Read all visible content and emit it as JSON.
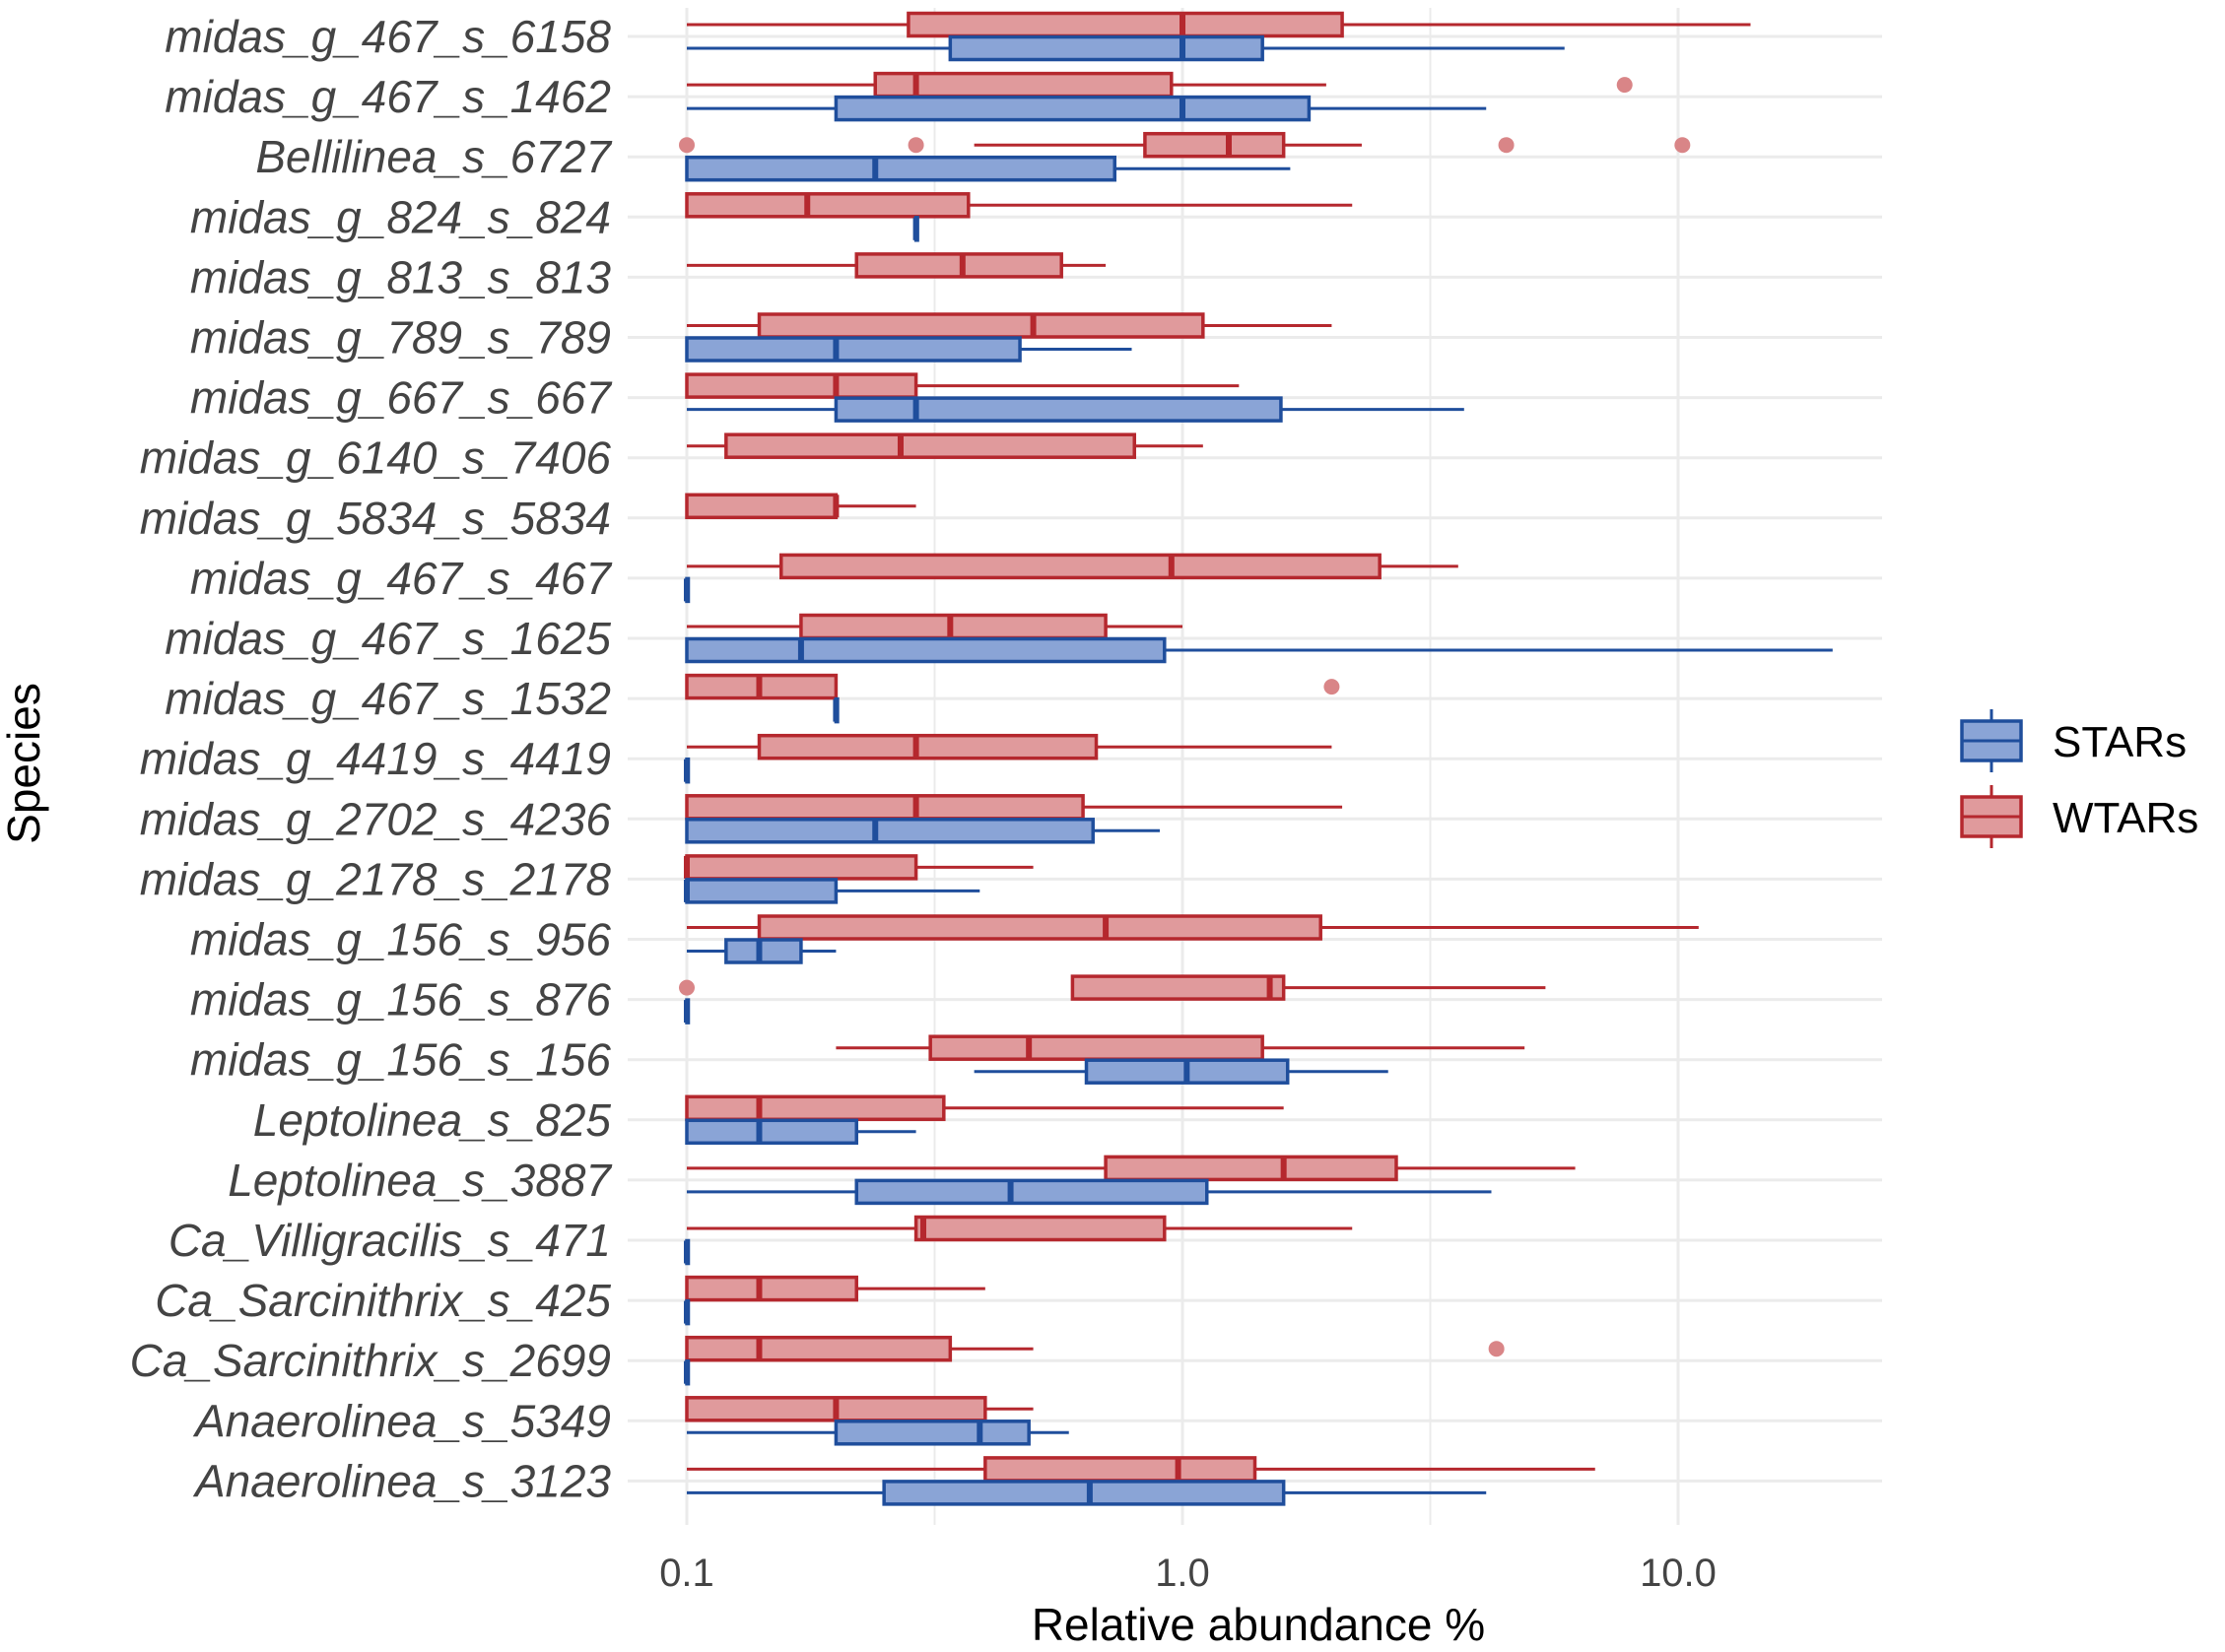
{
  "colors": {
    "STARs": {
      "stroke": "#1f4e9c",
      "fill": "#8aa4d6"
    },
    "WTARs": {
      "stroke": "#b5282e",
      "fill": "#e09a9c"
    },
    "outlier": "#d98587",
    "grid": "#ebebeb"
  },
  "chart_data": {
    "type": "boxplot-horizontal",
    "xlabel": "Relative abundance %",
    "ylabel": "Species",
    "xscale": "log10",
    "xlim": [
      0.1,
      20
    ],
    "xticks": [
      {
        "value": 0.1,
        "label": "0.1"
      },
      {
        "value": 1.0,
        "label": "1.0"
      },
      {
        "value": 10.0,
        "label": "10.0"
      }
    ],
    "legend": {
      "position": "right",
      "entries": [
        "STARs",
        "WTARs"
      ]
    },
    "categories": [
      "midas_g_467_s_6158",
      "midas_g_467_s_1462",
      "Bellilinea_s_6727",
      "midas_g_824_s_824",
      "midas_g_813_s_813",
      "midas_g_789_s_789",
      "midas_g_667_s_667",
      "midas_g_6140_s_7406",
      "midas_g_5834_s_5834",
      "midas_g_467_s_467",
      "midas_g_467_s_1625",
      "midas_g_467_s_1532",
      "midas_g_4419_s_4419",
      "midas_g_2702_s_4236",
      "midas_g_2178_s_2178",
      "midas_g_156_s_956",
      "midas_g_156_s_876",
      "midas_g_156_s_156",
      "Leptolinea_s_825",
      "Leptolinea_s_3887",
      "Ca_Villigracilis_s_471",
      "Ca_Sarcinithrix_s_425",
      "Ca_Sarcinithrix_s_2699",
      "Anaerolinea_s_5349",
      "Anaerolinea_s_3123"
    ],
    "series": [
      {
        "name": "WTARs",
        "boxes": [
          {
            "category": "midas_g_467_s_6158",
            "min": 0.1,
            "q1": 0.28,
            "median": 1.0,
            "q3": 2.1,
            "max": 14.0,
            "outliers": []
          },
          {
            "category": "midas_g_467_s_1462",
            "min": 0.1,
            "q1": 0.24,
            "median": 0.29,
            "q3": 0.95,
            "max": 1.95,
            "outliers": [
              7.8
            ]
          },
          {
            "category": "Bellilinea_s_6727",
            "min": 0.38,
            "q1": 0.84,
            "median": 1.24,
            "q3": 1.6,
            "max": 2.3,
            "outliers": [
              0.1,
              0.29,
              4.5,
              10.2
            ]
          },
          {
            "category": "midas_g_824_s_824",
            "min": 0.1,
            "q1": 0.1,
            "median": 0.175,
            "q3": 0.37,
            "max": 2.2,
            "outliers": []
          },
          {
            "category": "midas_g_813_s_813",
            "min": 0.1,
            "q1": 0.22,
            "median": 0.36,
            "q3": 0.57,
            "max": 0.7,
            "outliers": []
          },
          {
            "category": "midas_g_789_s_789",
            "min": 0.1,
            "q1": 0.14,
            "median": 0.5,
            "q3": 1.1,
            "max": 2.0,
            "outliers": []
          },
          {
            "category": "midas_g_667_s_667",
            "min": 0.1,
            "q1": 0.1,
            "median": 0.2,
            "q3": 0.29,
            "max": 1.3,
            "outliers": []
          },
          {
            "category": "midas_g_6140_s_7406",
            "min": 0.1,
            "q1": 0.12,
            "median": 0.27,
            "q3": 0.8,
            "max": 1.1,
            "outliers": []
          },
          {
            "category": "midas_g_5834_s_5834",
            "min": 0.1,
            "q1": 0.1,
            "median": 0.2,
            "q3": 0.2,
            "max": 0.29,
            "outliers": []
          },
          {
            "category": "midas_g_467_s_467",
            "min": 0.1,
            "q1": 0.155,
            "median": 0.95,
            "q3": 2.5,
            "max": 3.6,
            "outliers": []
          },
          {
            "category": "midas_g_467_s_1625",
            "min": 0.1,
            "q1": 0.17,
            "median": 0.34,
            "q3": 0.7,
            "max": 1.0,
            "outliers": []
          },
          {
            "category": "midas_g_467_s_1532",
            "min": 0.1,
            "q1": 0.1,
            "median": 0.14,
            "q3": 0.2,
            "max": 0.2,
            "outliers": [
              2.0
            ]
          },
          {
            "category": "midas_g_4419_s_4419",
            "min": 0.1,
            "q1": 0.14,
            "median": 0.29,
            "q3": 0.67,
            "max": 2.0,
            "outliers": []
          },
          {
            "category": "midas_g_2702_s_4236",
            "min": 0.1,
            "q1": 0.1,
            "median": 0.29,
            "q3": 0.63,
            "max": 2.1,
            "outliers": []
          },
          {
            "category": "midas_g_2178_s_2178",
            "min": 0.1,
            "q1": 0.1,
            "median": 0.1,
            "q3": 0.29,
            "max": 0.5,
            "outliers": []
          },
          {
            "category": "midas_g_156_s_956",
            "min": 0.1,
            "q1": 0.14,
            "median": 0.7,
            "q3": 1.9,
            "max": 11.0,
            "outliers": []
          },
          {
            "category": "midas_g_156_s_876",
            "min": 0.6,
            "q1": 0.6,
            "median": 1.5,
            "q3": 1.6,
            "max": 5.4,
            "outliers": [
              0.1
            ]
          },
          {
            "category": "midas_g_156_s_156",
            "min": 0.2,
            "q1": 0.31,
            "median": 0.49,
            "q3": 1.45,
            "max": 4.9,
            "outliers": []
          },
          {
            "category": "Leptolinea_s_825",
            "min": 0.1,
            "q1": 0.1,
            "median": 0.14,
            "q3": 0.33,
            "max": 1.6,
            "outliers": []
          },
          {
            "category": "Leptolinea_s_3887",
            "min": 0.1,
            "q1": 0.7,
            "median": 1.6,
            "q3": 2.7,
            "max": 6.2,
            "outliers": []
          },
          {
            "category": "Ca_Villigracilis_s_471",
            "min": 0.1,
            "q1": 0.29,
            "median": 0.3,
            "q3": 0.92,
            "max": 2.2,
            "outliers": []
          },
          {
            "category": "Ca_Sarcinithrix_s_425",
            "min": 0.1,
            "q1": 0.1,
            "median": 0.14,
            "q3": 0.22,
            "max": 0.4,
            "outliers": []
          },
          {
            "category": "Ca_Sarcinithrix_s_2699",
            "min": 0.1,
            "q1": 0.1,
            "median": 0.14,
            "q3": 0.34,
            "max": 0.5,
            "outliers": [
              4.3
            ]
          },
          {
            "category": "Anaerolinea_s_5349",
            "min": 0.1,
            "q1": 0.1,
            "median": 0.2,
            "q3": 0.4,
            "max": 0.5,
            "outliers": []
          },
          {
            "category": "Anaerolinea_s_3123",
            "min": 0.1,
            "q1": 0.4,
            "median": 0.98,
            "q3": 1.4,
            "max": 6.8,
            "outliers": []
          }
        ]
      },
      {
        "name": "STARs",
        "boxes": [
          {
            "category": "midas_g_467_s_6158",
            "min": 0.1,
            "q1": 0.34,
            "median": 1.0,
            "q3": 1.45,
            "max": 5.9,
            "outliers": []
          },
          {
            "category": "midas_g_467_s_1462",
            "min": 0.1,
            "q1": 0.2,
            "median": 1.0,
            "q3": 1.8,
            "max": 4.1,
            "outliers": []
          },
          {
            "category": "Bellilinea_s_6727",
            "min": 0.1,
            "q1": 0.1,
            "median": 0.24,
            "q3": 0.73,
            "max": 1.65,
            "outliers": []
          },
          {
            "category": "midas_g_824_s_824",
            "min": 0.29,
            "q1": 0.29,
            "median": 0.29,
            "q3": 0.29,
            "max": 0.29,
            "outliers": []
          },
          {
            "category": "midas_g_813_s_813",
            "absent": true
          },
          {
            "category": "midas_g_789_s_789",
            "min": 0.1,
            "q1": 0.1,
            "median": 0.2,
            "q3": 0.47,
            "max": 0.79,
            "outliers": []
          },
          {
            "category": "midas_g_667_s_667",
            "min": 0.1,
            "q1": 0.2,
            "median": 0.29,
            "q3": 1.58,
            "max": 3.7,
            "outliers": []
          },
          {
            "category": "midas_g_6140_s_7406",
            "absent": true
          },
          {
            "category": "midas_g_5834_s_5834",
            "absent": true
          },
          {
            "category": "midas_g_467_s_467",
            "min": 0.1,
            "q1": 0.1,
            "median": 0.1,
            "q3": 0.1,
            "max": 0.1,
            "outliers": []
          },
          {
            "category": "midas_g_467_s_1625",
            "min": 0.1,
            "q1": 0.1,
            "median": 0.17,
            "q3": 0.92,
            "max": 20.5,
            "outliers": []
          },
          {
            "category": "midas_g_467_s_1532",
            "min": 0.2,
            "q1": 0.2,
            "median": 0.2,
            "q3": 0.2,
            "max": 0.2,
            "outliers": []
          },
          {
            "category": "midas_g_4419_s_4419",
            "min": 0.1,
            "q1": 0.1,
            "median": 0.1,
            "q3": 0.1,
            "max": 0.1,
            "outliers": []
          },
          {
            "category": "midas_g_2702_s_4236",
            "min": 0.1,
            "q1": 0.1,
            "median": 0.24,
            "q3": 0.66,
            "max": 0.9,
            "outliers": []
          },
          {
            "category": "midas_g_2178_s_2178",
            "min": 0.1,
            "q1": 0.1,
            "median": 0.1,
            "q3": 0.2,
            "max": 0.39,
            "outliers": []
          },
          {
            "category": "midas_g_156_s_956",
            "min": 0.1,
            "q1": 0.12,
            "median": 0.14,
            "q3": 0.17,
            "max": 0.2,
            "outliers": []
          },
          {
            "category": "midas_g_156_s_876",
            "min": 0.1,
            "q1": 0.1,
            "median": 0.1,
            "q3": 0.1,
            "max": 0.1,
            "outliers": []
          },
          {
            "category": "midas_g_156_s_156",
            "min": 0.38,
            "q1": 0.64,
            "median": 1.02,
            "q3": 1.63,
            "max": 2.6,
            "outliers": []
          },
          {
            "category": "Leptolinea_s_825",
            "min": 0.1,
            "q1": 0.1,
            "median": 0.14,
            "q3": 0.22,
            "max": 0.29,
            "outliers": []
          },
          {
            "category": "Leptolinea_s_3887",
            "min": 0.1,
            "q1": 0.22,
            "median": 0.45,
            "q3": 1.12,
            "max": 4.2,
            "outliers": []
          },
          {
            "category": "Ca_Villigracilis_s_471",
            "min": 0.1,
            "q1": 0.1,
            "median": 0.1,
            "q3": 0.1,
            "max": 0.1,
            "outliers": []
          },
          {
            "category": "Ca_Sarcinithrix_s_425",
            "min": 0.1,
            "q1": 0.1,
            "median": 0.1,
            "q3": 0.1,
            "max": 0.1,
            "outliers": []
          },
          {
            "category": "Ca_Sarcinithrix_s_2699",
            "min": 0.1,
            "q1": 0.1,
            "median": 0.1,
            "q3": 0.1,
            "max": 0.1,
            "outliers": []
          },
          {
            "category": "Anaerolinea_s_5349",
            "min": 0.1,
            "q1": 0.2,
            "median": 0.39,
            "q3": 0.49,
            "max": 0.59,
            "outliers": []
          },
          {
            "category": "Anaerolinea_s_3123",
            "min": 0.1,
            "q1": 0.25,
            "median": 0.65,
            "q3": 1.6,
            "max": 4.1,
            "outliers": []
          }
        ]
      }
    ]
  }
}
